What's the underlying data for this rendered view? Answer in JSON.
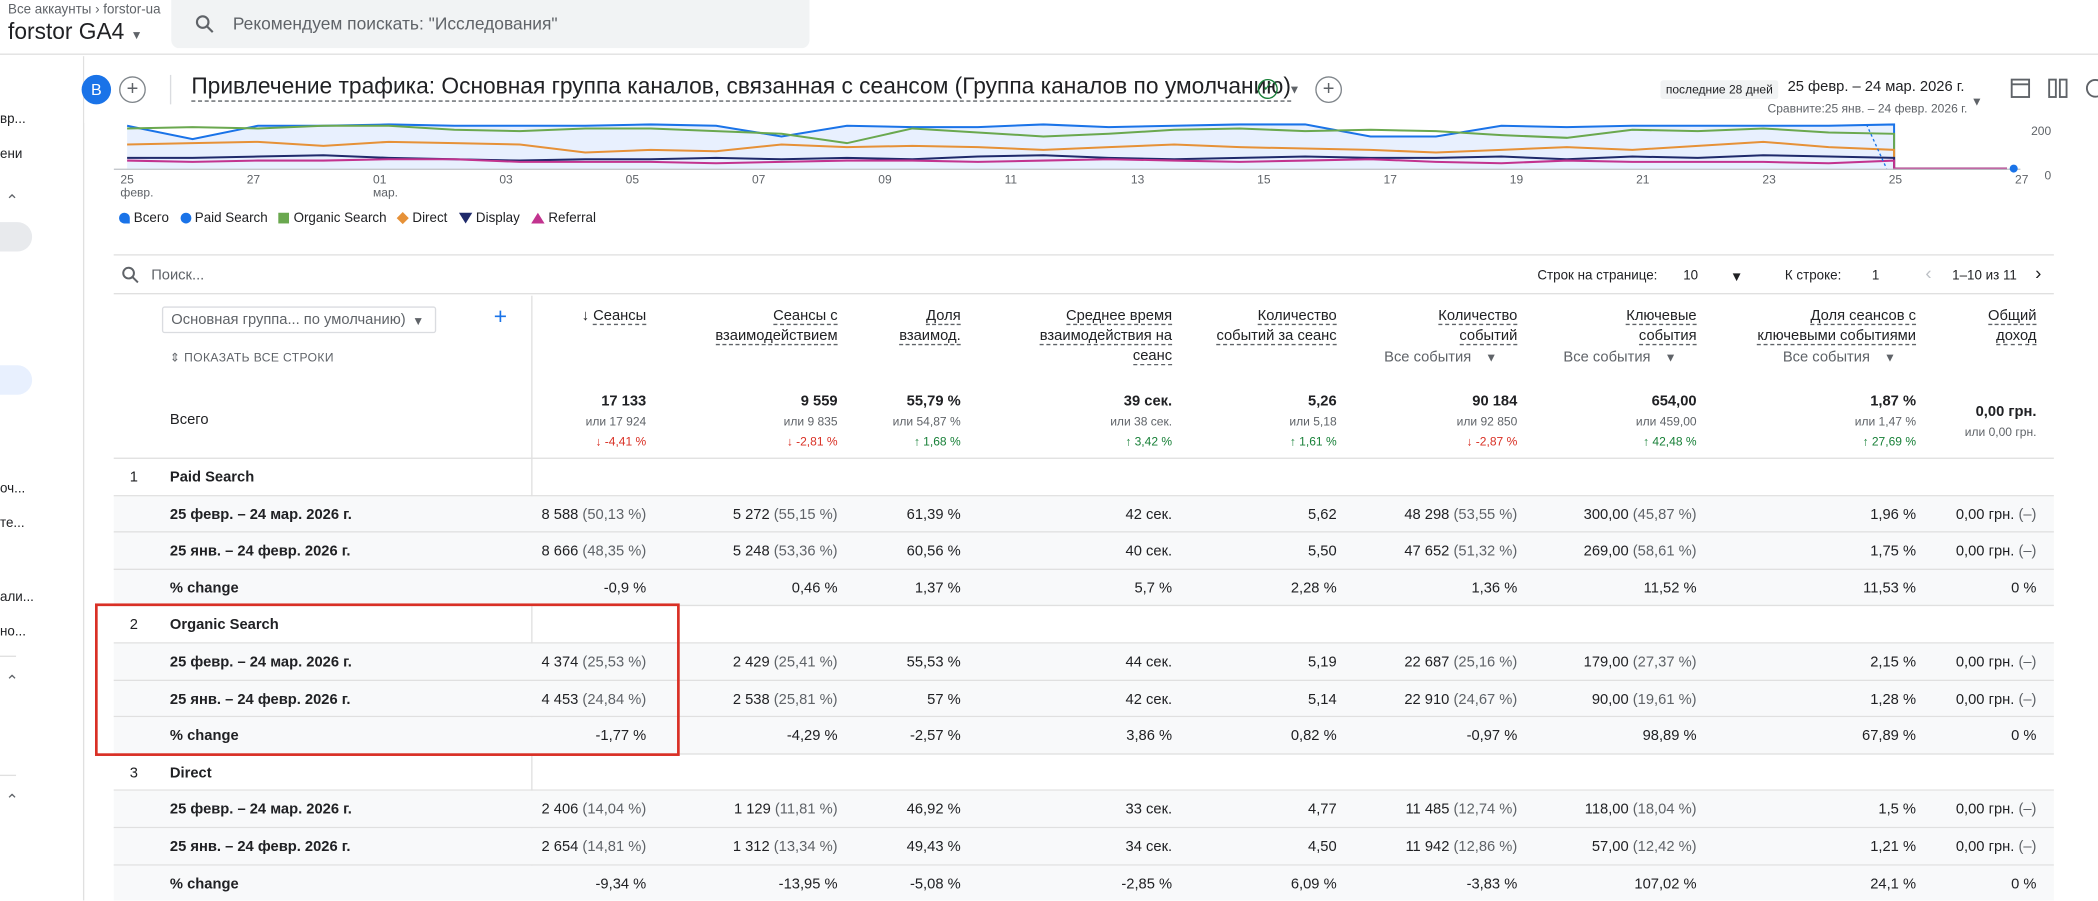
{
  "topbar": {
    "breadcrumb_root": "Все аккаунты",
    "breadcrumb_account": "forstor-ua",
    "property": "forstor GA4",
    "search_placeholder": "Рекомендуем поискать: \"Исследования\""
  },
  "leftnav": {
    "items": [
      "вр...",
      "ени",
      "оч...",
      "те...",
      "али...",
      "но..."
    ]
  },
  "report": {
    "avatar": "B",
    "title": "Привлечение трафика: Основная группа каналов, связанная с сеансом (Группа каналов по умолчанию)",
    "date_badge": "последние 28 дней",
    "date_range": "25 февр. – 24 мар. 2026 г.",
    "compare": "Сравните:25 янв. – 24 февр. 2026 г."
  },
  "chart_data": {
    "type": "line",
    "x": [
      "25 февр.",
      "27",
      "01 мар.",
      "03",
      "05",
      "07",
      "09",
      "11",
      "13",
      "15",
      "17",
      "19",
      "21",
      "23",
      "25",
      "27"
    ],
    "y_ticks": [
      "200",
      "0"
    ],
    "series": [
      {
        "name": "Всего",
        "color": "#1a73e8"
      },
      {
        "name": "Paid Search",
        "color": "#1a73e8"
      },
      {
        "name": "Organic Search",
        "color": "#6aa84f"
      },
      {
        "name": "Direct",
        "color": "#e69138"
      },
      {
        "name": "Display",
        "color": "#1f2a6b"
      },
      {
        "name": "Referral",
        "color": "#c2338f"
      }
    ]
  },
  "table": {
    "search_placeholder": "Поиск...",
    "rows_per_page_label": "Строк на странице:",
    "rows_per_page": "10",
    "goto_label": "К строке:",
    "goto_value": "1",
    "page_info": "1–10 из 11",
    "dim_select": "Основная группа... по умолчанию)",
    "show_all": "ПОКАЗАТЬ ВСЕ СТРОКИ",
    "total_label": "Всего",
    "columns": [
      {
        "h1": "Сеансы",
        "h2": "",
        "ev": "",
        "total": "17 133",
        "cmp": "или 17 924",
        "chg": "↓ -4,41 %",
        "dir": "dn"
      },
      {
        "h1": "Сеансы с",
        "h2": "взаимодействием",
        "ev": "",
        "total": "9 559",
        "cmp": "или 9 835",
        "chg": "↓ -2,81 %",
        "dir": "dn"
      },
      {
        "h1": "Доля",
        "h2": "взаимод.",
        "ev": "",
        "total": "55,79 %",
        "cmp": "или 54,87 %",
        "chg": "↑ 1,68 %",
        "dir": "up"
      },
      {
        "h1": "Среднее время",
        "h2": "взаимодействия на",
        "h3": "сеанс",
        "ev": "",
        "total": "39 сек.",
        "cmp": "или 38 сек.",
        "chg": "↑ 3,42 %",
        "dir": "up"
      },
      {
        "h1": "Количество",
        "h2": "событий за сеанс",
        "ev": "",
        "total": "5,26",
        "cmp": "или 5,18",
        "chg": "↑ 1,61 %",
        "dir": "up"
      },
      {
        "h1": "Количество",
        "h2": "событий",
        "ev": "Все события",
        "total": "90 184",
        "cmp": "или 92 850",
        "chg": "↓ -2,87 %",
        "dir": "dn"
      },
      {
        "h1": "Ключевые",
        "h2": "события",
        "ev": "Все события",
        "total": "654,00",
        "cmp": "или 459,00",
        "chg": "↑ 42,48 %",
        "dir": "up"
      },
      {
        "h1": "Доля сеансов с",
        "h2": "ключевыми событиями",
        "ev": "Все события",
        "total": "1,87 %",
        "cmp": "или 1,47 %",
        "chg": "↑ 27,69 %",
        "dir": "up"
      },
      {
        "h1": "Общий",
        "h2": "доход",
        "ev": "",
        "total": "0,00 грн.",
        "cmp": "или 0,00 грн.",
        "chg": "",
        "dir": ""
      }
    ],
    "groups": [
      {
        "n": "1",
        "name": "Paid Search",
        "rows": [
          {
            "label": "25 февр. – 24 мар. 2026 г.",
            "v": [
              "8 588",
              "(50,13 %)",
              "5 272",
              "(55,15 %)",
              "61,39 %",
              "",
              "42 сек.",
              "",
              "5,62",
              "",
              "48 298",
              "(53,55 %)",
              "300,00",
              "(45,87 %)",
              "1,96 %",
              "",
              "0,00 грн.",
              "(–)"
            ]
          },
          {
            "label": "25 янв. – 24 февр. 2026 г.",
            "v": [
              "8 666",
              "(48,35 %)",
              "5 248",
              "(53,36 %)",
              "60,56 %",
              "",
              "40 сек.",
              "",
              "5,50",
              "",
              "47 652",
              "(51,32 %)",
              "269,00",
              "(58,61 %)",
              "1,75 %",
              "",
              "0,00 грн.",
              "(–)"
            ]
          },
          {
            "label": "% change",
            "v": [
              "-0,9 %",
              "",
              "0,46 %",
              "",
              "1,37 %",
              "",
              "5,7 %",
              "",
              "2,28 %",
              "",
              "1,36 %",
              "",
              "11,52 %",
              "",
              "11,53 %",
              "",
              "0 %",
              ""
            ]
          }
        ]
      },
      {
        "n": "2",
        "name": "Organic Search",
        "rows": [
          {
            "label": "25 февр. – 24 мар. 2026 г.",
            "v": [
              "4 374",
              "(25,53 %)",
              "2 429",
              "(25,41 %)",
              "55,53 %",
              "",
              "44 сек.",
              "",
              "5,19",
              "",
              "22 687",
              "(25,16 %)",
              "179,00",
              "(27,37 %)",
              "2,15 %",
              "",
              "0,00 грн.",
              "(–)"
            ]
          },
          {
            "label": "25 янв. – 24 февр. 2026 г.",
            "v": [
              "4 453",
              "(24,84 %)",
              "2 538",
              "(25,81 %)",
              "57 %",
              "",
              "42 сек.",
              "",
              "5,14",
              "",
              "22 910",
              "(24,67 %)",
              "90,00",
              "(19,61 %)",
              "1,28 %",
              "",
              "0,00 грн.",
              "(–)"
            ]
          },
          {
            "label": "% change",
            "v": [
              "-1,77 %",
              "",
              "-4,29 %",
              "",
              "-2,57 %",
              "",
              "3,86 %",
              "",
              "0,82 %",
              "",
              "-0,97 %",
              "",
              "98,89 %",
              "",
              "67,89 %",
              "",
              "0 %",
              ""
            ]
          }
        ]
      },
      {
        "n": "3",
        "name": "Direct",
        "rows": [
          {
            "label": "25 февр. – 24 мар. 2026 г.",
            "v": [
              "2 406",
              "(14,04 %)",
              "1 129",
              "(11,81 %)",
              "46,92 %",
              "",
              "33 сек.",
              "",
              "4,77",
              "",
              "11 485",
              "(12,74 %)",
              "118,00",
              "(18,04 %)",
              "1,5 %",
              "",
              "0,00 грн.",
              "(–)"
            ]
          },
          {
            "label": "25 янв. – 24 февр. 2026 г.",
            "v": [
              "2 654",
              "(14,81 %)",
              "1 312",
              "(13,34 %)",
              "49,43 %",
              "",
              "34 сек.",
              "",
              "4,50",
              "",
              "11 942",
              "(12,86 %)",
              "57,00",
              "(12,42 %)",
              "1,21 %",
              "",
              "0,00 грн.",
              "(–)"
            ]
          },
          {
            "label": "% change",
            "v": [
              "-9,34 %",
              "",
              "-13,95 %",
              "",
              "-5,08 %",
              "",
              "-2,85 %",
              "",
              "6,09 %",
              "",
              "-3,83 %",
              "",
              "107,02 %",
              "",
              "24,1 %",
              "",
              "0 %",
              ""
            ]
          }
        ]
      }
    ]
  }
}
